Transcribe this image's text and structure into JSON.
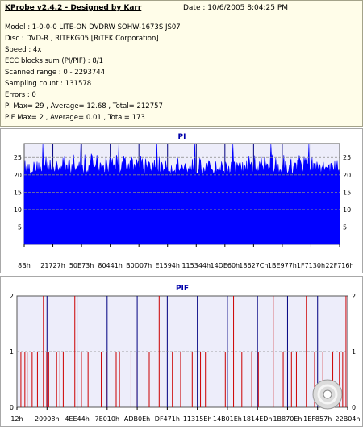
{
  "info": {
    "title": "KProbe v2.4.2 - Designed by Karr",
    "date": "Date : 10/6/2005 8:04:25 PM",
    "lines": [
      "Model : 1-0-0-0 LITE-ON DVDRW SOHW-1673S JS07",
      "Disc : DVD-R , RITEKG05 [RiTEK Corporation]",
      "Speed : 4x",
      "ECC blocks sum (PI/PIF) : 8/1",
      "Scanned range : 0 - 2293744",
      "Sampling count : 131578",
      "Errors : 0",
      "PI Max= 29 , Average= 12.68 , Total= 212757",
      "PIF Max= 2 , Average= 0.01 , Total= 173"
    ]
  },
  "chart_data": [
    {
      "type": "area",
      "title": "PI",
      "x_ticks": [
        "8Bh",
        "21727h",
        "50E73h",
        "80441h",
        "B0D07h",
        "E1594h",
        "115344h",
        "14DE60h",
        "18627Ch",
        "1BE977h",
        "1F7130h",
        "22F716h"
      ],
      "y_ticks": [
        "5",
        "10",
        "15",
        "20",
        "25"
      ],
      "ylim": [
        0,
        29
      ],
      "grid": true,
      "series_color": "#0000ff",
      "baseline_level": 20,
      "typical_peak": 24,
      "max_value": 29
    },
    {
      "type": "bar",
      "title": "PIF",
      "x_ticks": [
        "12h",
        "20908h",
        "4EE44h",
        "7E010h",
        "ADB0Eh",
        "DF471h",
        "11315Eh",
        "14B01Eh",
        "1814EDh",
        "1B870Eh",
        "1EF857h",
        "22B04h"
      ],
      "y_ticks": [
        "0",
        "1",
        "2"
      ],
      "ylim": [
        0,
        2
      ],
      "grid": true,
      "series_color": "#cc0000",
      "spikes_value_2": [
        0.08,
        0.175,
        0.43,
        0.655,
        0.775,
        0.875,
        0.995
      ],
      "spikes_value_1": [
        0.012,
        0.024,
        0.031,
        0.046,
        0.062,
        0.09,
        0.096,
        0.12,
        0.13,
        0.14,
        0.195,
        0.215,
        0.255,
        0.27,
        0.3,
        0.31,
        0.345,
        0.36,
        0.4,
        0.47,
        0.495,
        0.53,
        0.555,
        0.57,
        0.63,
        0.68,
        0.71,
        0.73,
        0.805,
        0.83,
        0.845,
        0.9,
        0.925,
        0.955,
        0.975,
        0.985
      ]
    }
  ]
}
